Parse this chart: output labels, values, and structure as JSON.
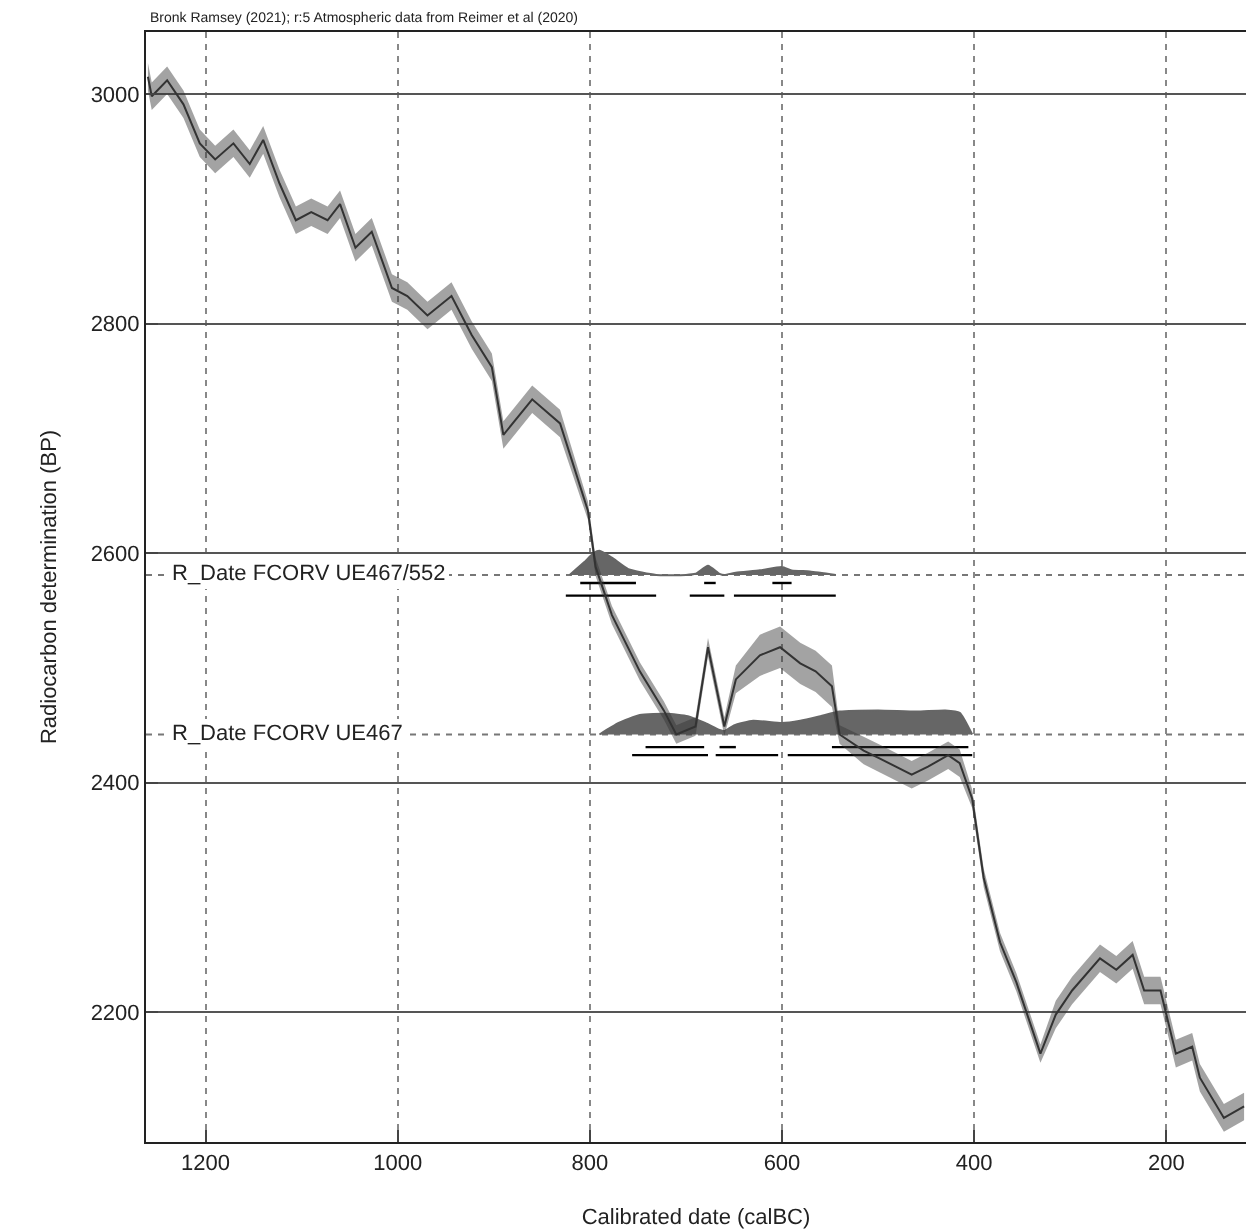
{
  "chart_data": {
    "type": "line",
    "xlabel": "Calibrated date (calBC)",
    "ylabel": "Radiocarbon determination (BP)",
    "annotations": [
      "Bronk Ramsey (2021); r:5 Atmospheric data from Reimer et al (2020)"
    ],
    "xlim": [
      1262,
      117
    ],
    "ylim": [
      2087,
      3054
    ],
    "xticks": [
      1200,
      1000,
      800,
      600,
      400,
      200
    ],
    "yticks": [
      2200,
      2400,
      2600,
      2800,
      3000
    ],
    "grid": true,
    "marker": "none",
    "ref_lines": [
      {
        "axis": "y",
        "value": 2581,
        "label": "R_Date FCORV UE467/552",
        "line_style": "dotted",
        "color": "#777777"
      },
      {
        "axis": "y",
        "value": 2442,
        "label": "R_Date FCORV UE467",
        "line_style": "dotted",
        "color": "#777777"
      }
    ],
    "series": [
      {
        "color": "#333333",
        "x": [
          1260,
          1256,
          1240,
          1223,
          1206,
          1190,
          1171,
          1154,
          1140,
          1123,
          1106,
          1090,
          1073,
          1060,
          1044,
          1027,
          1006,
          990,
          969,
          944,
          923,
          902,
          890,
          860,
          831,
          802,
          794,
          777,
          748,
          723,
          710,
          690,
          677,
          660,
          648,
          623,
          602,
          581,
          565,
          548,
          540,
          515,
          498,
          465,
          448,
          427,
          415,
          402,
          390,
          373,
          356,
          331,
          315,
          298,
          269,
          252,
          235,
          223,
          206,
          190,
          173,
          165,
          140,
          119
        ],
        "values": [
          3015,
          2998,
          3012,
          2991,
          2957,
          2943,
          2957,
          2939,
          2960,
          2922,
          2890,
          2897,
          2890,
          2904,
          2866,
          2880,
          2831,
          2824,
          2807,
          2824,
          2790,
          2762,
          2703,
          2734,
          2713,
          2637,
          2588,
          2546,
          2497,
          2463,
          2442,
          2449,
          2518,
          2449,
          2490,
          2511,
          2518,
          2504,
          2497,
          2484,
          2442,
          2428,
          2421,
          2407,
          2414,
          2424,
          2417,
          2386,
          2317,
          2261,
          2226,
          2164,
          2198,
          2219,
          2247,
          2237,
          2250,
          2219,
          2219,
          2164,
          2170,
          2143,
          2108,
          2118
        ],
        "lower": [
          3003,
          2986,
          3000,
          2979,
          2945,
          2931,
          2945,
          2927,
          2948,
          2910,
          2878,
          2885,
          2878,
          2892,
          2854,
          2868,
          2819,
          2812,
          2795,
          2812,
          2778,
          2750,
          2691,
          2722,
          2701,
          2629,
          2580,
          2538,
          2489,
          2455,
          2434,
          2441,
          2510,
          2441,
          2478,
          2493,
          2500,
          2486,
          2479,
          2466,
          2434,
          2416,
          2409,
          2395,
          2402,
          2412,
          2405,
          2378,
          2309,
          2253,
          2218,
          2156,
          2186,
          2207,
          2235,
          2225,
          2238,
          2207,
          2207,
          2152,
          2158,
          2131,
          2096,
          2106
        ],
        "upper": [
          3027,
          3010,
          3024,
          3003,
          2969,
          2955,
          2969,
          2951,
          2972,
          2934,
          2902,
          2909,
          2902,
          2916,
          2878,
          2892,
          2843,
          2836,
          2819,
          2836,
          2802,
          2774,
          2715,
          2746,
          2725,
          2645,
          2596,
          2554,
          2505,
          2471,
          2450,
          2457,
          2526,
          2457,
          2502,
          2529,
          2536,
          2522,
          2515,
          2502,
          2450,
          2440,
          2433,
          2419,
          2426,
          2436,
          2429,
          2394,
          2325,
          2269,
          2234,
          2172,
          2210,
          2231,
          2259,
          2249,
          2262,
          2231,
          2231,
          2176,
          2182,
          2155,
          2120,
          2130
        ]
      },
      {
        "type": "area",
        "color": "#666666",
        "x": [
          821,
          806,
          796,
          790,
          777,
          760,
          731,
          700,
          690,
          677,
          665,
          660,
          648,
          623,
          600,
          590,
          571,
          544
        ],
        "values": [
          2581,
          2592,
          2600,
          2602,
          2596,
          2586,
          2581,
          2581,
          2582,
          2589,
          2582,
          2581,
          2583,
          2585,
          2588,
          2585,
          2584,
          2581
        ]
      },
      {
        "type": "area",
        "color": "#666666",
        "x": [
          790,
          770,
          748,
          720,
          698,
          680,
          665,
          660,
          650,
          630,
          600,
          581,
          560,
          540,
          500,
          460,
          430,
          415,
          402
        ],
        "values": [
          2442,
          2452,
          2459,
          2460,
          2458,
          2452,
          2446,
          2445,
          2450,
          2454,
          2452,
          2454,
          2458,
          2462,
          2463,
          2462,
          2463,
          2461,
          2442
        ]
      },
      {
        "color": "#000000",
        "x": [
          810,
          752,
          null,
          681,
          669,
          null,
          610,
          590
        ],
        "values": [
          2574,
          2574,
          null,
          2574,
          2574,
          null,
          2574,
          2574
        ]
      },
      {
        "color": "#000000",
        "x": [
          825,
          731,
          null,
          696,
          660,
          null,
          650,
          544
        ],
        "values": [
          2563,
          2563,
          null,
          2563,
          2563,
          null,
          2563,
          2563
        ]
      },
      {
        "color": "#000000",
        "x": [
          742,
          681,
          null,
          665,
          648,
          null,
          548,
          406
        ],
        "values": [
          2431,
          2431,
          null,
          2431,
          2431,
          null,
          2431,
          2431
        ]
      },
      {
        "color": "#000000",
        "x": [
          756,
          677,
          null,
          669,
          604,
          null,
          594,
          402
        ],
        "values": [
          2424,
          2424,
          null,
          2424,
          2424,
          null,
          2424,
          2424
        ]
      }
    ]
  }
}
